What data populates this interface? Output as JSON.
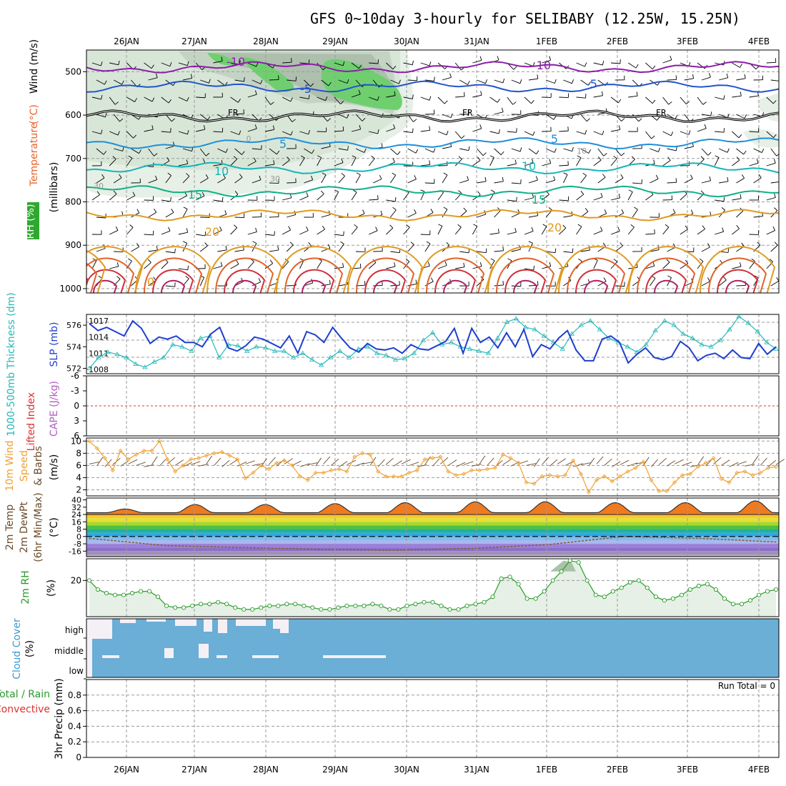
{
  "chart_data": {
    "type": "meteogram",
    "title": "GFS 0~10day 3-hourly for SELIBABY (12.25W, 15.25N)",
    "date_labels": [
      "26JAN",
      "27JAN",
      "28JAN",
      "29JAN",
      "30JAN",
      "31JAN",
      "1FEB",
      "2FEB",
      "3FEB",
      "4FEB"
    ],
    "panels": [
      {
        "id": "upper_air",
        "ylabel_parts": [
          {
            "text": "RH (%)",
            "color": "#22aa22"
          },
          {
            "text": "Temperature",
            "color": "#e8642c"
          },
          {
            "text": "(°C)",
            "color": "#e8642c"
          },
          {
            "text": "Wind (m/s)",
            "color": "#000000"
          },
          {
            "text": "(millibars)",
            "color": "#000000"
          }
        ],
        "yticks": [
          "500",
          "600",
          "700",
          "800",
          "900",
          "1000"
        ],
        "ylim": [
          450,
          1010
        ],
        "isotherms": [
          {
            "label": "-10",
            "level": 490,
            "color": "#8a1fa8"
          },
          {
            "label": "-5",
            "level": 535,
            "color": "#2255cc"
          },
          {
            "label": "FR",
            "level": 603,
            "color": "#000000"
          },
          {
            "label": "5",
            "level": 665,
            "color": "#1f8fd8"
          },
          {
            "label": "10",
            "level": 722,
            "color": "#18b4b8"
          },
          {
            "label": "15",
            "level": 775,
            "color": "#10b088"
          },
          {
            "label": "20",
            "level": 830,
            "color": "#e09a20"
          }
        ],
        "contour_labels": [
          "-10",
          "-5",
          "FR",
          "5",
          "10",
          "15",
          "20",
          "-10",
          "-5",
          "FR",
          "5",
          "10",
          "15",
          "20",
          "-5",
          "FR",
          "0",
          "10",
          "30",
          "30",
          "0"
        ]
      },
      {
        "id": "slp_thickness",
        "ylabel_left": "1000-500mb Thickness (dm)",
        "ylabel_right": "SLP (mb)",
        "left_ticks": [
          "576",
          "574",
          "572"
        ],
        "right_ticks": [
          "1017",
          "1014",
          "1011",
          "1008"
        ],
        "slp_mb": [
          1016.5,
          1015.2,
          1015.8,
          1015.0,
          1014.2,
          1017.0,
          1015.6,
          1012.8,
          1014.0,
          1013.6,
          1014.2,
          1013.0,
          1013.0,
          1012.2,
          1014.6,
          1015.8,
          1012.0,
          1011.4,
          1012.4,
          1014.0,
          1013.6,
          1012.8,
          1012.0,
          1014.2,
          1011.0,
          1015.0,
          1014.4,
          1013.0,
          1015.8,
          1013.8,
          1012.0,
          1011.2,
          1012.8,
          1011.8,
          1011.6,
          1012.0,
          1011.0,
          1012.6,
          1011.8,
          1011.6,
          1012.4,
          1013.2,
          1015.6,
          1011.0,
          1015.6,
          1013.0,
          1014.0,
          1012.0,
          1014.8,
          1012.2,
          1015.4,
          1010.4,
          1012.6,
          1011.8,
          1013.8,
          1015.2,
          1011.6,
          1009.6,
          1009.6,
          1013.6,
          1014.2,
          1013.0,
          1009.2,
          1010.8,
          1012.0,
          1010.2,
          1009.8,
          1010.4,
          1013.2,
          1012.0,
          1009.6,
          1010.6,
          1011.0,
          1010.0,
          1011.6,
          1010.2,
          1010.0,
          1012.8,
          1010.8,
          1012.2
        ],
        "thickness_dm": [
          572.0,
          573.0,
          573.5,
          573.3,
          573.0,
          572.4,
          572.1,
          572.6,
          573.0,
          574.2,
          574.0,
          573.6,
          574.8,
          575.0,
          573.0,
          574.2,
          574.1,
          573.6,
          574.0,
          573.9,
          573.6,
          573.6,
          573.0,
          573.4,
          572.8,
          572.3,
          573.0,
          573.6,
          573.0,
          573.8,
          574.0,
          573.4,
          573.2,
          572.8,
          572.9,
          573.4,
          574.6,
          575.3,
          574.2,
          574.4,
          574.0,
          573.8,
          573.6,
          573.4,
          574.8,
          576.3,
          576.6,
          575.8,
          575.6,
          575.0,
          574.4,
          573.8,
          575.2,
          576.0,
          576.4,
          575.6,
          574.8,
          574.4,
          574.0,
          573.5,
          574.2,
          575.5,
          576.4,
          576.0,
          575.2,
          574.8,
          574.2,
          574.0,
          574.6,
          575.6,
          576.8,
          576.2,
          575.4,
          574.4,
          573.8
        ]
      },
      {
        "id": "cape_li",
        "ylabel_left": "Lifted Index",
        "ylabel_right": "CAPE (J/kg)",
        "yticks": [
          "-6",
          "-3",
          "0",
          "3",
          "6"
        ],
        "lifted_index": [],
        "cape": []
      },
      {
        "id": "wind10m",
        "ylabel_parts": [
          "10m Wind",
          "Speed",
          "& Barbs",
          "(m/s)"
        ],
        "yticks": [
          "10",
          "8",
          "6",
          "4",
          "2"
        ],
        "ylim": [
          1,
          10.5
        ],
        "speed_ms": [
          10.0,
          8.8,
          7.2,
          5.2,
          8.4,
          7.0,
          7.8,
          8.4,
          8.4,
          10.0,
          7.0,
          5.0,
          6.0,
          7.0,
          7.2,
          7.6,
          8.0,
          8.2,
          7.6,
          7.0,
          3.9,
          4.8,
          6.0,
          5.4,
          6.4,
          6.8,
          6.0,
          4.2,
          3.6,
          4.8,
          4.8,
          5.2,
          5.4,
          5.0,
          7.4,
          8.0,
          7.8,
          5.0,
          4.2,
          4.2,
          4.2,
          4.8,
          5.2,
          7.0,
          7.2,
          7.4,
          5.0,
          4.4,
          4.6,
          5.2,
          5.2,
          5.4,
          5.6,
          7.8,
          7.2,
          6.4,
          3.2,
          3.0,
          4.2,
          4.4,
          4.2,
          4.4,
          6.8,
          4.6,
          1.6,
          3.6,
          4.2,
          3.4,
          4.2,
          5.0,
          5.6,
          6.6,
          3.6,
          1.8,
          1.8,
          3.2,
          4.4,
          4.6,
          5.8,
          6.4,
          7.2,
          3.8,
          3.2,
          4.8,
          5.0,
          4.4,
          4.8,
          5.6,
          5.8
        ]
      },
      {
        "id": "temp2m",
        "ylabel_parts": [
          "2m Temp",
          "2m DewPt",
          "(6hr Min/Max)",
          "(°C)"
        ],
        "yticks": [
          "40",
          "32",
          "24",
          "16",
          "8",
          "0",
          "-8",
          "-16"
        ],
        "ylim": [
          -22,
          42
        ],
        "temp_max": [
          30,
          35,
          35,
          36,
          37,
          38,
          38,
          37,
          37,
          39
        ],
        "temp_min": [
          24,
          23,
          24,
          24,
          23,
          24,
          25,
          24,
          25,
          24
        ],
        "dewpoint_c": [
          -2,
          -10,
          -12,
          -14,
          -15,
          -13,
          -9,
          0,
          -2,
          -6
        ]
      },
      {
        "id": "rh2m",
        "ylabel_parts": [
          "2m RH",
          "(%)"
        ],
        "yticks": [
          "20"
        ],
        "ylim": [
          0,
          32
        ],
        "rh_pct": [
          20,
          15,
          13,
          12,
          12,
          13,
          14,
          14,
          11,
          6,
          5,
          5,
          6,
          7,
          7,
          8,
          7,
          5,
          4,
          4,
          5,
          6,
          6,
          7,
          7,
          6,
          5,
          4,
          4,
          5,
          6,
          6,
          6,
          7,
          6,
          4,
          4,
          6,
          7,
          8,
          8,
          6,
          4,
          4,
          6,
          7,
          8,
          11,
          21,
          22,
          18,
          10,
          10,
          14,
          20,
          25,
          31,
          30,
          20,
          12,
          11,
          14,
          16,
          19,
          20,
          16,
          11,
          9,
          10,
          12,
          15,
          17,
          18,
          15,
          10,
          7,
          7,
          9,
          12,
          14,
          15
        ]
      },
      {
        "id": "cloud",
        "ylabel_parts": [
          "Cloud Cover",
          "(%)"
        ],
        "levels": [
          "high",
          "middle",
          "low"
        ],
        "fill_color": "#6baed6"
      },
      {
        "id": "precip",
        "ylabel_parts": [
          "Total / Rain",
          "Convective",
          "3hr Precip (mm)"
        ],
        "yticks": [
          "0.8",
          "0.6",
          "0.4",
          "0.2",
          "0"
        ],
        "ylim": [
          0,
          1
        ],
        "run_total": "Run Total = 0",
        "precip_mm": []
      }
    ]
  }
}
